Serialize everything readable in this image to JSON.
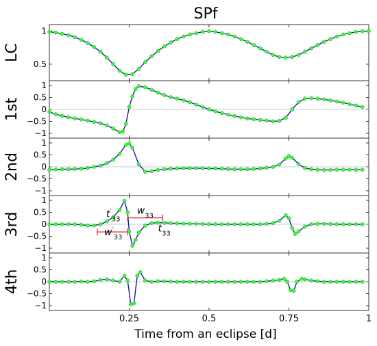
{
  "figure": {
    "title": "SPf",
    "xlabel": "Time from an eclipse [d]"
  },
  "chart_data": [
    {
      "type": "line",
      "ylabel": "LC",
      "xlim": [
        0,
        1
      ],
      "ylim": [
        0.25,
        1.1
      ],
      "yticks": [
        0.5,
        1
      ],
      "ytick_labels": [
        "0.5",
        "1"
      ],
      "x": [
        0,
        0.02,
        0.04,
        0.06,
        0.08,
        0.1,
        0.12,
        0.14,
        0.16,
        0.18,
        0.2,
        0.22,
        0.24,
        0.26,
        0.28,
        0.3,
        0.32,
        0.34,
        0.36,
        0.38,
        0.4,
        0.42,
        0.44,
        0.46,
        0.48,
        0.5,
        0.52,
        0.54,
        0.56,
        0.58,
        0.6,
        0.62,
        0.64,
        0.66,
        0.68,
        0.7,
        0.72,
        0.74,
        0.76,
        0.78,
        0.8,
        0.82,
        0.84,
        0.86,
        0.88,
        0.9,
        0.92,
        0.94,
        0.96,
        0.98,
        1.0
      ],
      "y": [
        0.99,
        0.98,
        0.96,
        0.94,
        0.91,
        0.87,
        0.82,
        0.76,
        0.69,
        0.6,
        0.5,
        0.4,
        0.34,
        0.35,
        0.43,
        0.53,
        0.62,
        0.7,
        0.77,
        0.83,
        0.88,
        0.92,
        0.95,
        0.97,
        0.99,
        1.0,
        0.99,
        0.97,
        0.95,
        0.92,
        0.88,
        0.84,
        0.79,
        0.74,
        0.69,
        0.64,
        0.61,
        0.6,
        0.61,
        0.64,
        0.69,
        0.74,
        0.79,
        0.84,
        0.88,
        0.92,
        0.95,
        0.97,
        0.99,
        1.0,
        1.0
      ]
    },
    {
      "type": "line",
      "ylabel": "1st",
      "xlim": [
        0,
        1
      ],
      "ylim": [
        -1.2,
        1.2
      ],
      "yticks": [
        -1,
        -0.5,
        0,
        0.5,
        1
      ],
      "ytick_labels": [
        "−1",
        "−0.5",
        "0",
        "0.5",
        "1"
      ],
      "x": [
        0,
        0.02,
        0.04,
        0.06,
        0.08,
        0.1,
        0.12,
        0.14,
        0.16,
        0.18,
        0.2,
        0.22,
        0.23,
        0.24,
        0.25,
        0.26,
        0.27,
        0.28,
        0.3,
        0.32,
        0.34,
        0.36,
        0.38,
        0.4,
        0.42,
        0.44,
        0.46,
        0.48,
        0.5,
        0.52,
        0.54,
        0.56,
        0.58,
        0.6,
        0.62,
        0.64,
        0.66,
        0.68,
        0.7,
        0.72,
        0.74,
        0.76,
        0.78,
        0.8,
        0.82,
        0.84,
        0.86,
        0.88,
        0.9,
        0.92,
        0.94,
        0.96,
        0.98
      ],
      "y": [
        -0.1,
        -0.2,
        -0.27,
        -0.33,
        -0.38,
        -0.42,
        -0.47,
        -0.52,
        -0.58,
        -0.67,
        -0.8,
        -0.95,
        -0.93,
        -0.6,
        0.1,
        0.55,
        0.85,
        0.97,
        0.93,
        0.82,
        0.7,
        0.6,
        0.51,
        0.45,
        0.38,
        0.3,
        0.2,
        0.1,
        0.0,
        -0.08,
        -0.15,
        -0.22,
        -0.28,
        -0.33,
        -0.38,
        -0.41,
        -0.44,
        -0.47,
        -0.5,
        -0.48,
        -0.35,
        0.0,
        0.3,
        0.45,
        0.47,
        0.45,
        0.42,
        0.38,
        0.33,
        0.28,
        0.22,
        0.16,
        0.1
      ]
    },
    {
      "type": "line",
      "ylabel": "2nd",
      "xlim": [
        0,
        1
      ],
      "ylim": [
        -1.2,
        1.2
      ],
      "yticks": [
        -1,
        -0.5,
        0,
        0.5,
        1
      ],
      "ytick_labels": [
        "−1",
        "−0.5",
        "0",
        "0.5",
        "1"
      ],
      "x": [
        0,
        0.02,
        0.04,
        0.06,
        0.08,
        0.1,
        0.12,
        0.14,
        0.16,
        0.18,
        0.2,
        0.22,
        0.24,
        0.25,
        0.26,
        0.28,
        0.3,
        0.32,
        0.34,
        0.36,
        0.38,
        0.4,
        0.42,
        0.44,
        0.46,
        0.48,
        0.5,
        0.52,
        0.54,
        0.56,
        0.58,
        0.6,
        0.62,
        0.64,
        0.66,
        0.68,
        0.7,
        0.72,
        0.74,
        0.75,
        0.76,
        0.78,
        0.8,
        0.82,
        0.84,
        0.86,
        0.88,
        0.9,
        0.92,
        0.94,
        0.96,
        0.98
      ],
      "y": [
        -0.12,
        -0.11,
        -0.1,
        -0.1,
        -0.09,
        -0.08,
        -0.05,
        0.0,
        0.05,
        0.15,
        0.3,
        0.55,
        0.92,
        0.98,
        0.8,
        0.1,
        -0.2,
        -0.18,
        -0.13,
        -0.1,
        -0.08,
        -0.07,
        -0.06,
        -0.06,
        -0.06,
        -0.06,
        -0.07,
        -0.07,
        -0.08,
        -0.09,
        -0.1,
        -0.1,
        -0.1,
        -0.09,
        -0.07,
        -0.04,
        0.0,
        0.1,
        0.35,
        0.45,
        0.38,
        0.12,
        -0.05,
        -0.1,
        -0.12,
        -0.13,
        -0.13,
        -0.12,
        -0.12,
        -0.12,
        -0.12,
        -0.12
      ]
    },
    {
      "type": "line",
      "ylabel": "3rd",
      "xlim": [
        0,
        1
      ],
      "ylim": [
        -1.2,
        1.2
      ],
      "yticks": [
        -1,
        -0.5,
        0,
        0.5,
        1
      ],
      "ytick_labels": [
        "−1",
        "−0.5",
        "0",
        "0.5",
        "1"
      ],
      "x": [
        0,
        0.02,
        0.04,
        0.06,
        0.08,
        0.1,
        0.12,
        0.14,
        0.16,
        0.18,
        0.2,
        0.22,
        0.235,
        0.245,
        0.25,
        0.26,
        0.27,
        0.28,
        0.3,
        0.32,
        0.34,
        0.36,
        0.38,
        0.4,
        0.42,
        0.44,
        0.46,
        0.48,
        0.5,
        0.52,
        0.54,
        0.56,
        0.58,
        0.6,
        0.62,
        0.64,
        0.66,
        0.68,
        0.7,
        0.72,
        0.74,
        0.75,
        0.76,
        0.77,
        0.78,
        0.8,
        0.82,
        0.84,
        0.86,
        0.88,
        0.9,
        0.92,
        0.94,
        0.96,
        0.98
      ],
      "y": [
        0.0,
        0.0,
        0.0,
        0.0,
        0.0,
        -0.02,
        -0.05,
        -0.05,
        0.0,
        0.12,
        0.3,
        0.6,
        0.98,
        0.5,
        -0.3,
        -0.9,
        -0.65,
        -0.35,
        -0.05,
        0.05,
        0.07,
        0.06,
        0.05,
        0.04,
        0.03,
        0.02,
        0.02,
        0.01,
        0.0,
        0.0,
        0.0,
        0.0,
        0.0,
        0.0,
        0.0,
        0.0,
        0.0,
        0.02,
        0.05,
        0.15,
        0.38,
        0.25,
        -0.15,
        -0.4,
        -0.3,
        -0.1,
        0.0,
        0.02,
        0.02,
        0.01,
        0.0,
        0.0,
        0.0,
        0.0,
        0.0
      ],
      "annotations": [
        {
          "label_base": "t",
          "label_prime": "′",
          "label_sub": "33",
          "x": 0.2,
          "y": 0.3
        },
        {
          "label_base": "w",
          "label_sub": "33",
          "x": 0.3,
          "y": 0.45
        },
        {
          "label_base": "w",
          "label_prime": "′",
          "label_sub": "33",
          "x": 0.2,
          "y": -0.45
        },
        {
          "label_base": "t",
          "label_sub": "33",
          "x": 0.36,
          "y": -0.3
        }
      ],
      "ranges": [
        {
          "x0": 0.245,
          "x1": 0.355,
          "y": 0.27
        },
        {
          "x0": 0.15,
          "x1": 0.245,
          "y": -0.32
        }
      ]
    },
    {
      "type": "line",
      "ylabel": "4th",
      "xlim": [
        0,
        1
      ],
      "ylim": [
        -1.2,
        1.2
      ],
      "yticks": [
        -1,
        -0.5,
        0,
        0.5,
        1
      ],
      "ytick_labels": [
        "−1",
        "−0.5",
        "0",
        "0.5",
        "1"
      ],
      "x": [
        0,
        0.02,
        0.04,
        0.06,
        0.08,
        0.1,
        0.12,
        0.14,
        0.16,
        0.18,
        0.2,
        0.22,
        0.235,
        0.245,
        0.255,
        0.265,
        0.275,
        0.285,
        0.3,
        0.32,
        0.34,
        0.36,
        0.38,
        0.4,
        0.42,
        0.44,
        0.46,
        0.48,
        0.5,
        0.52,
        0.54,
        0.56,
        0.58,
        0.6,
        0.62,
        0.64,
        0.66,
        0.68,
        0.7,
        0.72,
        0.735,
        0.745,
        0.755,
        0.765,
        0.775,
        0.79,
        0.8,
        0.82,
        0.84,
        0.86,
        0.88,
        0.9,
        0.92,
        0.94,
        0.96,
        0.98
      ],
      "y": [
        0.0,
        0.0,
        0.0,
        0.0,
        0.0,
        0.01,
        0.0,
        0.02,
        0.08,
        0.1,
        0.05,
        0.0,
        0.25,
        0.05,
        -0.95,
        -0.9,
        0.25,
        0.4,
        0.05,
        0.0,
        0.02,
        0.02,
        0.01,
        0.0,
        0.0,
        0.0,
        0.0,
        0.0,
        0.0,
        0.0,
        0.0,
        0.0,
        0.0,
        0.0,
        0.0,
        0.0,
        0.0,
        0.02,
        0.05,
        0.08,
        0.12,
        0.0,
        -0.35,
        -0.38,
        0.0,
        0.12,
        0.1,
        0.05,
        0.02,
        0.0,
        0.0,
        0.0,
        0.0,
        0.0,
        0.0,
        0.0
      ]
    }
  ],
  "xaxis": {
    "ticks": [
      0.25,
      0.5,
      0.75,
      1
    ],
    "tick_labels": [
      "0.25",
      "0.5",
      "0.75",
      "1"
    ]
  },
  "colors": {
    "line": "#1a1aa0",
    "marker": "#33ff33",
    "grid": "#333333",
    "annotation": "#e03030"
  }
}
